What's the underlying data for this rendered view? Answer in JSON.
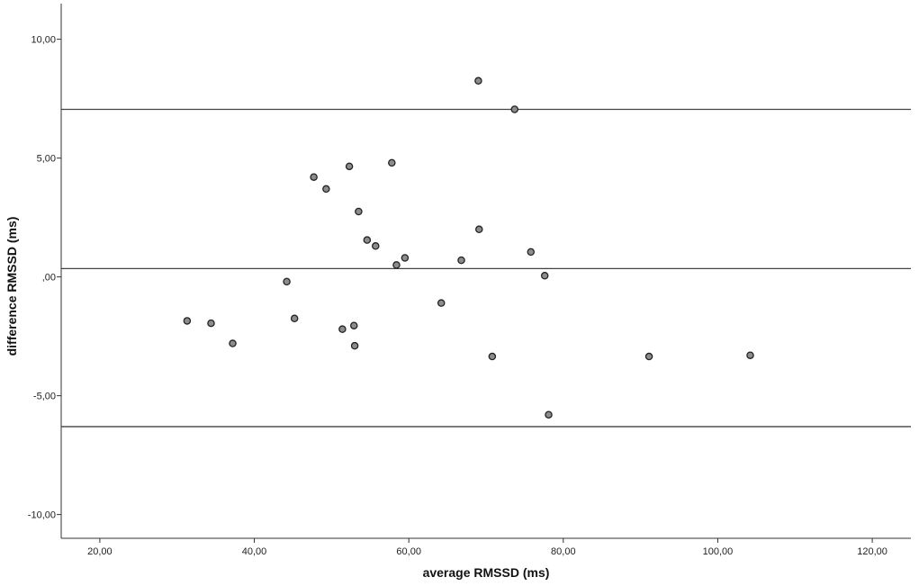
{
  "chart_data": {
    "type": "scatter",
    "xlabel": "average RMSSD (ms)",
    "ylabel": "difference RMSSD (ms)",
    "xlim": [
      15,
      125
    ],
    "ylim": [
      -11,
      11.5
    ],
    "x_ticks": [
      20,
      40,
      60,
      80,
      100,
      120
    ],
    "x_tick_labels": [
      "20,00",
      "40,00",
      "60,00",
      "80,00",
      "100,00",
      "120,00"
    ],
    "y_ticks": [
      10,
      5,
      0,
      -5,
      -10
    ],
    "y_tick_labels": [
      "10,00",
      "5,00",
      ",00",
      "-5,00",
      "-10,00"
    ],
    "reference_lines": [
      7.05,
      0.35,
      -6.3
    ],
    "grid": false,
    "legend": "none",
    "colors": {
      "point_fill": "#8c8c8c",
      "point_stroke": "#222222",
      "line": "#444444",
      "axis": "#333333"
    },
    "points": [
      {
        "x": 31.3,
        "y": -1.85
      },
      {
        "x": 34.4,
        "y": -1.95
      },
      {
        "x": 37.2,
        "y": -2.8
      },
      {
        "x": 44.2,
        "y": -0.2
      },
      {
        "x": 45.2,
        "y": -1.75
      },
      {
        "x": 47.7,
        "y": 4.2
      },
      {
        "x": 49.3,
        "y": 3.7
      },
      {
        "x": 51.4,
        "y": -2.2
      },
      {
        "x": 52.3,
        "y": 4.65
      },
      {
        "x": 52.9,
        "y": -2.05
      },
      {
        "x": 53.0,
        "y": -2.9
      },
      {
        "x": 53.5,
        "y": 2.75
      },
      {
        "x": 54.6,
        "y": 1.55
      },
      {
        "x": 55.7,
        "y": 1.3
      },
      {
        "x": 57.8,
        "y": 4.8
      },
      {
        "x": 58.4,
        "y": 0.5
      },
      {
        "x": 59.5,
        "y": 0.8
      },
      {
        "x": 64.2,
        "y": -1.1
      },
      {
        "x": 66.8,
        "y": 0.7
      },
      {
        "x": 69.0,
        "y": 8.25
      },
      {
        "x": 69.1,
        "y": 2.0
      },
      {
        "x": 70.8,
        "y": -3.35
      },
      {
        "x": 73.7,
        "y": 7.05
      },
      {
        "x": 75.8,
        "y": 1.05
      },
      {
        "x": 77.6,
        "y": 0.05
      },
      {
        "x": 78.1,
        "y": -5.8
      },
      {
        "x": 91.1,
        "y": -3.35
      },
      {
        "x": 104.2,
        "y": -3.3
      }
    ]
  }
}
